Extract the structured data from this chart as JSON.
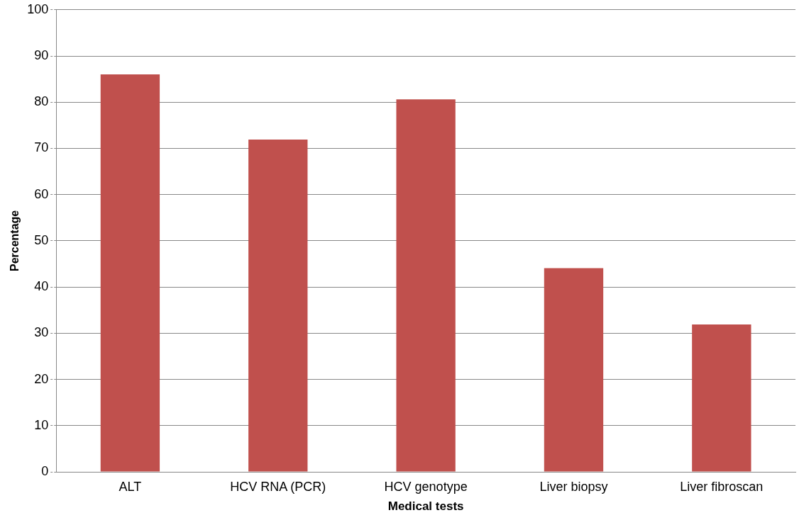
{
  "chart_data": {
    "type": "bar",
    "xlabel": "Medical tests",
    "ylabel": "Percentage",
    "categories": [
      "ALT",
      "HCV RNA (PCR)",
      "HCV genotype",
      "Liver biopsy",
      "Liver fibroscan"
    ],
    "values": [
      86,
      71.9,
      80.6,
      44.1,
      31.9
    ],
    "color": "#c0504d",
    "ylim": [
      0,
      100
    ],
    "yticks": [
      0,
      10,
      20,
      30,
      40,
      50,
      60,
      70,
      80,
      90,
      100
    ],
    "grid": "y",
    "legend": false
  }
}
